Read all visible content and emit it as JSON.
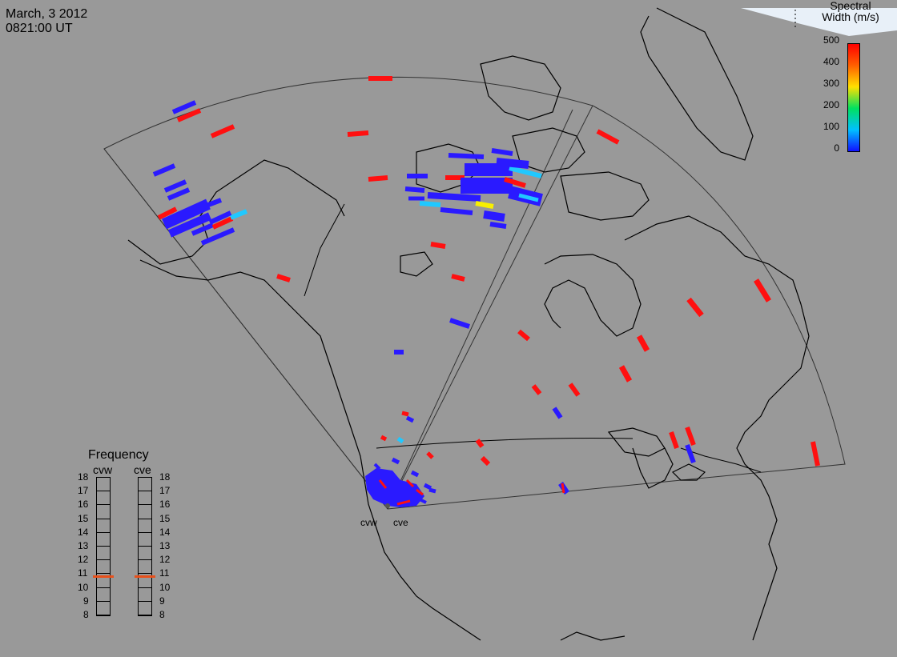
{
  "header": {
    "date": "March, 3 2012",
    "time": "0821:00 UT"
  },
  "colorbar": {
    "title_line1": "Spectral",
    "title_line2": "Width (m/s)",
    "ticks": [
      "500",
      "400",
      "300",
      "200",
      "100",
      "0"
    ],
    "colors": [
      "#1010ff",
      "#00c0ff",
      "#00e060",
      "#ffe000",
      "#ff6000",
      "#ff0000"
    ]
  },
  "frequency_panel": {
    "title": "Frequency",
    "radars": [
      "cvw",
      "cve"
    ],
    "scale": [
      "18",
      "17",
      "16",
      "15",
      "14",
      "13",
      "12",
      "11",
      "10",
      "9",
      "8"
    ],
    "cvw_value": 10.8,
    "cve_value": 10.8,
    "marker_color": "#e8501a"
  },
  "sites": {
    "west": "cvw",
    "east": "cve"
  },
  "colors": {
    "background": "#999999",
    "blue": "#2a1aff",
    "red": "#ff1010",
    "cyan": "#20c8ff",
    "yellow": "#f8f000"
  }
}
